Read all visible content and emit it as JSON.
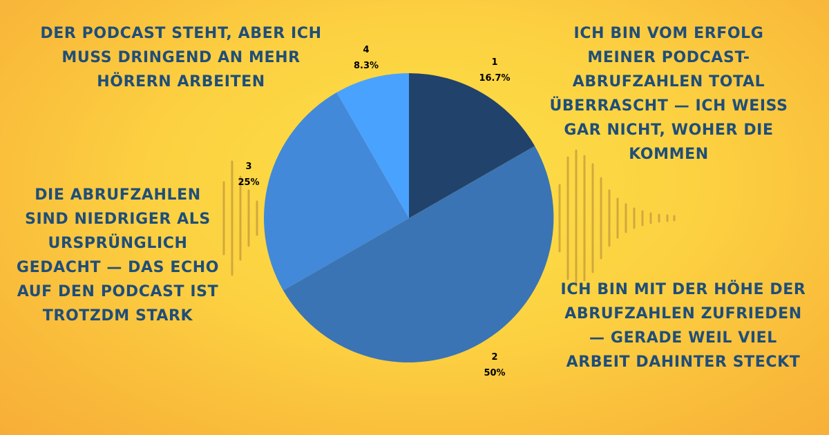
{
  "colors": {
    "text": "#1f4e79",
    "bars": "#c39a3c",
    "slices": [
      "#21426a",
      "#3a74b4",
      "#4289d9",
      "#4aa2ff"
    ]
  },
  "captions": {
    "slice_1": "Ich bin vom Erfolg meiner Podcast-Abrufzahlen total überrascht — ich weiss gar nicht, woher die kommen",
    "slice_2": "Ich bin mit der Höhe der Abrufzahlen zufrieden — gerade weil viel Arbeit dahinter steckt",
    "slice_3": "Die Abrufzahlen sind niedriger als ursprünglich gedacht — das Echo auf den Podcast ist trotzdm stark",
    "slice_4": "Der Podcast steht, aber ich muss dringend an mehr Hörern arbeiten"
  },
  "chart_data": {
    "type": "pie",
    "title": "",
    "start_angle": "12 o'clock",
    "direction": "clockwise",
    "slices": [
      {
        "label": "1",
        "value": 16.7,
        "percent_label": "16.7%"
      },
      {
        "label": "2",
        "value": 50,
        "percent_label": "50%"
      },
      {
        "label": "3",
        "value": 25,
        "percent_label": "25%"
      },
      {
        "label": "4",
        "value": 8.3,
        "percent_label": "8.3%"
      }
    ]
  }
}
